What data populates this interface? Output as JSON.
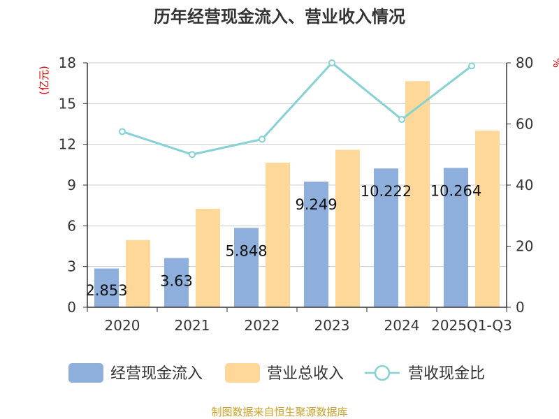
{
  "chart_data": {
    "type": "bar",
    "title": "历年经营现金流入、营业收入情况",
    "left_axis_unit": "(亿元)",
    "right_axis_unit": "%",
    "categories": [
      "2020",
      "2021",
      "2022",
      "2023",
      "2024",
      "2025Q1-Q3"
    ],
    "ylim_left": [
      0,
      18
    ],
    "yticks_left": [
      0,
      3,
      6,
      9,
      12,
      15,
      18
    ],
    "ylim_right": [
      0,
      80
    ],
    "yticks_right": [
      0,
      20,
      40,
      60,
      80
    ],
    "grid": true,
    "legend_position": "bottom",
    "series": [
      {
        "name": "经营现金流入",
        "type": "bar",
        "axis": "left",
        "color": "#8eaedc",
        "values": [
          2.853,
          3.63,
          5.848,
          9.249,
          10.222,
          10.264
        ],
        "labels": [
          "2.853",
          "3.63",
          "5.848",
          "9.249",
          "10.222",
          "10.264"
        ]
      },
      {
        "name": "营业总收入",
        "type": "bar",
        "axis": "left",
        "color": "#fdd898",
        "values": [
          4.95,
          7.25,
          10.65,
          11.6,
          16.65,
          13.0
        ]
      },
      {
        "name": "营收现金比",
        "type": "line",
        "axis": "right",
        "color": "#86d1d4",
        "values": [
          57.5,
          50.0,
          55.0,
          80.0,
          61.5,
          79.0
        ]
      }
    ],
    "source": "制图数据来自恒生聚源数据库"
  }
}
